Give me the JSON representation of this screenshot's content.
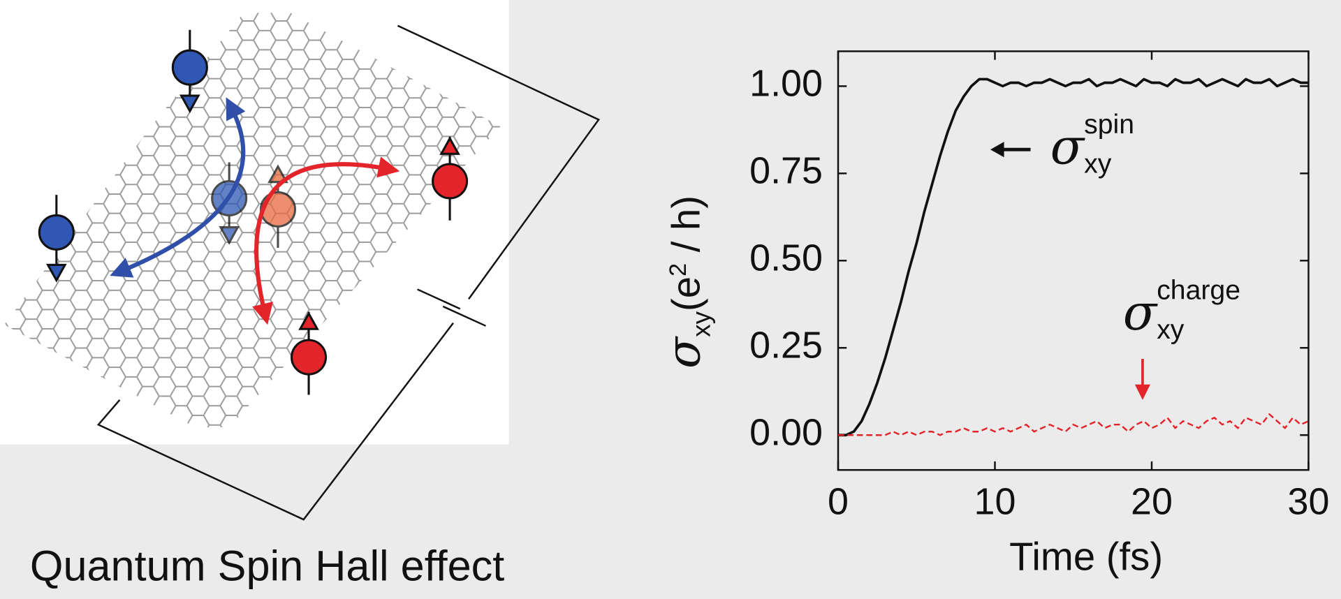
{
  "caption": "Quantum Spin Hall effect",
  "chart_data": {
    "type": "line",
    "xlabel": "Time (fs)",
    "ylabel": {
      "symbol": "σ",
      "subscript": "xy",
      "open": "(e",
      "superscript": "2",
      "close": " / h)"
    },
    "annotations": [
      {
        "symbol": "σ",
        "superscript": "spin",
        "subscript": "xy",
        "color": "#111111"
      },
      {
        "symbol": "σ",
        "superscript": "charge",
        "subscript": "xy",
        "color": "#e3242b"
      }
    ],
    "x": [
      0,
      0.5,
      1,
      1.5,
      2,
      2.5,
      3,
      3.5,
      4,
      4.5,
      5,
      5.5,
      6,
      6.5,
      7,
      7.5,
      8,
      8.5,
      9,
      9.5,
      10,
      10.5,
      11,
      11.5,
      12,
      12.5,
      13,
      13.5,
      14,
      14.5,
      15,
      15.5,
      16,
      16.5,
      17,
      17.5,
      18,
      18.5,
      19,
      19.5,
      20,
      20.5,
      21,
      21.5,
      22,
      22.5,
      23,
      23.5,
      24,
      24.5,
      25,
      25.5,
      26,
      26.5,
      27,
      27.5,
      28,
      28.5,
      29,
      29.5,
      30
    ],
    "series": [
      {
        "color": "#111111",
        "linestyle": "solid",
        "values": [
          0,
          0,
          0.01,
          0.04,
          0.09,
          0.15,
          0.22,
          0.3,
          0.38,
          0.47,
          0.55,
          0.64,
          0.72,
          0.8,
          0.87,
          0.93,
          0.97,
          1.0,
          1.02,
          1.02,
          1.01,
          1.0,
          1.01,
          1.01,
          1.0,
          1.01,
          1.01,
          1.02,
          1.01,
          1.0,
          1.01,
          1.01,
          1.02,
          1.0,
          1.01,
          1.01,
          1.02,
          1.01,
          1.0,
          1.02,
          1.01,
          1.01,
          1.0,
          1.02,
          1.01,
          1.01,
          1.02,
          1.0,
          1.01,
          1.02,
          1.01,
          1.0,
          1.02,
          1.01,
          1.01,
          1.02,
          1.0,
          1.01,
          1.02,
          1.01,
          1.01
        ]
      },
      {
        "color": "#e3242b",
        "linestyle": "dashed",
        "values": [
          0,
          0,
          0,
          0,
          0,
          0,
          0,
          0.01,
          0,
          0.01,
          0,
          0.01,
          0.01,
          0,
          0.01,
          0.01,
          0.02,
          0.01,
          0.01,
          0.02,
          0.01,
          0.02,
          0.01,
          0.02,
          0.03,
          0.01,
          0.02,
          0.03,
          0.02,
          0.01,
          0.03,
          0.02,
          0.03,
          0.04,
          0.02,
          0.03,
          0.03,
          0.01,
          0.03,
          0.04,
          0.02,
          0.03,
          0.05,
          0.02,
          0.04,
          0.03,
          0.02,
          0.04,
          0.05,
          0.03,
          0.04,
          0.02,
          0.05,
          0.04,
          0.03,
          0.06,
          0.04,
          0.02,
          0.05,
          0.03,
          0.04
        ]
      }
    ],
    "xlim": [
      0,
      30
    ],
    "xticks": [
      0,
      10,
      20,
      30
    ],
    "ylim": [
      -0.1,
      1.1
    ],
    "yticks": [
      {
        "value": 0,
        "label": "0.00"
      },
      0.25,
      {
        "value": 0.5,
        "label": "0.50"
      },
      0.75,
      {
        "value": 1,
        "label": "1.00"
      }
    ],
    "grid": false
  }
}
